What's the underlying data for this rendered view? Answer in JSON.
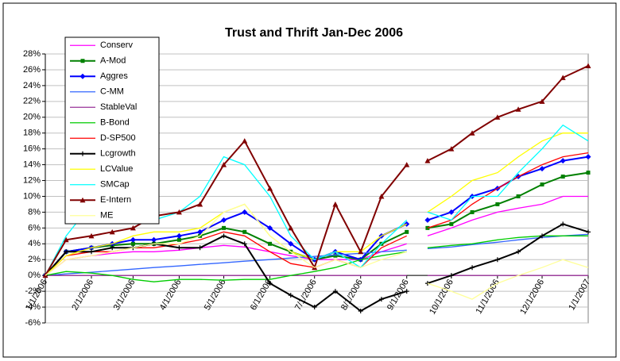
{
  "chart_data": {
    "type": "line",
    "title": "Trust and Thrift Jan-Dec 2006",
    "x": [
      "1/1/2006",
      "1/15/2006",
      "2/1/2006",
      "2/15/2006",
      "3/1/2006",
      "3/15/2006",
      "4/1/2006",
      "4/15/2006",
      "5/1/2006",
      "5/15/2006",
      "6/1/2006",
      "6/15/2006",
      "7/1/2006",
      "7/15/2006",
      "8/1/2006",
      "8/15/2006",
      "9/1/2006",
      "9/8/2006",
      "9/15/2006",
      "10/1/2006",
      "10/15/2006",
      "11/1/2006",
      "11/15/2006",
      "12/1/2006",
      "12/15/2006",
      "1/1/2007"
    ],
    "xlim": [
      "1/1/2006",
      "1/1/2007"
    ],
    "xticks": [
      "1/1/2006",
      "2/1/2006",
      "3/1/2006",
      "4/1/2006",
      "5/1/2006",
      "6/1/2006",
      "7/1/2006",
      "8/1/2006",
      "9/1/2006",
      "10/1/2006",
      "11/1/2006",
      "12/1/2006",
      "1/1/2007"
    ],
    "ylim": [
      -6,
      28
    ],
    "yticks": [
      {
        "value": -6,
        "label": "-6%"
      },
      {
        "value": -4,
        "label": "-4%"
      },
      {
        "value": -2,
        "label": "-2%"
      },
      {
        "value": 0,
        "label": "0%"
      },
      {
        "value": 2,
        "label": "2%"
      },
      {
        "value": 4,
        "label": "4%"
      },
      {
        "value": 6,
        "label": "6%"
      },
      {
        "value": 8,
        "label": "8%"
      },
      {
        "value": 10,
        "label": "10%"
      },
      {
        "value": 12,
        "label": "12%"
      },
      {
        "value": 14,
        "label": "14%"
      },
      {
        "value": 16,
        "label": "16%"
      },
      {
        "value": 18,
        "label": "18%"
      },
      {
        "value": 20,
        "label": "20%"
      },
      {
        "value": 22,
        "label": "22%"
      },
      {
        "value": 24,
        "label": "24%"
      },
      {
        "value": 26,
        "label": "26%"
      },
      {
        "value": 28,
        "label": "28%"
      }
    ],
    "grid": true,
    "legend": "top-left",
    "series": [
      {
        "name": "Conserv",
        "color": "#ff00ff",
        "marker": "none",
        "values": [
          0,
          2,
          2.5,
          2.8,
          3,
          3,
          3.2,
          3.5,
          3.8,
          3.6,
          3,
          2.5,
          2,
          2,
          2,
          3,
          4,
          null,
          5,
          6,
          7,
          8,
          8.5,
          9,
          10,
          10
        ]
      },
      {
        "name": "A-Mod",
        "color": "#008000",
        "marker": "square",
        "values": [
          0,
          3,
          3.5,
          3.8,
          4,
          4,
          4.5,
          5,
          6,
          5.5,
          4,
          3,
          2,
          2.5,
          2,
          4,
          5.5,
          null,
          6,
          6.5,
          8,
          9,
          10,
          11.5,
          12.5,
          13
        ]
      },
      {
        "name": "Aggres",
        "color": "#0000ff",
        "marker": "diamond",
        "values": [
          0,
          3,
          3.5,
          4,
          4.5,
          4.5,
          5,
          5.5,
          7,
          8,
          6,
          4,
          2,
          3,
          2,
          5,
          6.5,
          null,
          7,
          8,
          10,
          11,
          12.5,
          13.5,
          14.5,
          15
        ]
      },
      {
        "name": "C-MM",
        "color": "#3366ff",
        "marker": "none",
        "values": [
          0,
          0.2,
          0.4,
          0.6,
          0.8,
          1,
          1.2,
          1.4,
          1.6,
          1.8,
          2,
          2.2,
          2.4,
          2.6,
          2.8,
          3,
          3.2,
          null,
          3.4,
          3.6,
          3.9,
          4.2,
          4.5,
          4.8,
          5,
          5.2
        ]
      },
      {
        "name": "StableVal",
        "color": "#993399",
        "marker": "none",
        "values": [
          0,
          0,
          0,
          0,
          0,
          0,
          0,
          0,
          0,
          0,
          0,
          0,
          0,
          0,
          0,
          0,
          0,
          null,
          0,
          0,
          0,
          0,
          0,
          0,
          0,
          0
        ]
      },
      {
        "name": "B-Bond",
        "color": "#00cc00",
        "marker": "none",
        "values": [
          0,
          0.5,
          0.3,
          0,
          -0.5,
          -0.8,
          -0.5,
          -0.5,
          -0.6,
          -0.5,
          -0.5,
          0,
          0.5,
          1,
          2,
          2.5,
          3,
          null,
          3.5,
          3.8,
          4,
          4.5,
          4.8,
          5,
          5,
          5
        ]
      },
      {
        "name": "D-SP500",
        "color": "#ff0000",
        "marker": "none",
        "values": [
          0,
          2.5,
          3,
          3,
          3.5,
          3.5,
          4,
          4.5,
          5.5,
          5,
          3,
          1.5,
          1,
          2,
          1,
          3.5,
          5,
          null,
          6,
          7,
          9,
          11,
          12.5,
          14,
          15,
          15.5
        ]
      },
      {
        "name": "Lcgrowth",
        "color": "#000000",
        "marker": "plus",
        "values": [
          0,
          3,
          3,
          3.5,
          3.5,
          4,
          3.5,
          3.5,
          5,
          4,
          -1,
          -2.5,
          -4,
          -2,
          -4.5,
          -3,
          -2,
          null,
          -1,
          0,
          1,
          2,
          3,
          5,
          6.5,
          5.5
        ]
      },
      {
        "name": "LCValue",
        "color": "#ffff00",
        "marker": "none",
        "values": [
          0,
          2.5,
          3.5,
          4,
          5,
          5.5,
          5.5,
          6,
          8,
          9,
          5,
          3,
          2,
          3,
          3,
          5,
          6.5,
          null,
          8,
          10,
          12,
          13,
          15,
          17,
          18,
          18
        ]
      },
      {
        "name": "SMCap",
        "color": "#00ffff",
        "marker": "none",
        "values": [
          0,
          5,
          9,
          7,
          8,
          7,
          8,
          10,
          15,
          14,
          10,
          5,
          2,
          3,
          1,
          4,
          7,
          null,
          8,
          7,
          10,
          10,
          13,
          16,
          19,
          17
        ]
      },
      {
        "name": "E-Intern",
        "color": "#800000",
        "marker": "triangle",
        "values": [
          0,
          4.5,
          5,
          5.5,
          6,
          7.5,
          8,
          9,
          14,
          17,
          11,
          6,
          1,
          9,
          3,
          10,
          14,
          null,
          14.5,
          16,
          18,
          20,
          21,
          22,
          25,
          26.5
        ]
      },
      {
        "name": "ME",
        "color": "#ffff99",
        "marker": "none",
        "values": [
          0,
          2,
          2.5,
          3,
          3.5,
          4,
          4,
          5,
          8,
          9,
          5,
          3,
          1,
          2,
          1,
          2,
          3,
          null,
          -1,
          -2,
          -3,
          -1,
          0,
          1,
          2,
          1
        ]
      }
    ]
  }
}
